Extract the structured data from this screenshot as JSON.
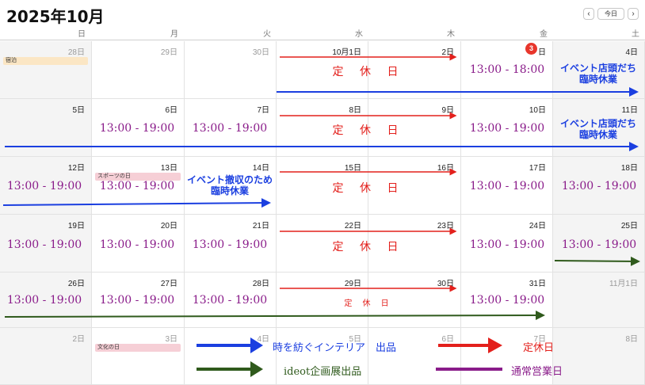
{
  "header": {
    "title": "2025年10月",
    "prev_label": "‹",
    "today_label": "今日",
    "next_label": "›"
  },
  "weekdays": [
    "日",
    "月",
    "火",
    "水",
    "木",
    "金",
    "土"
  ],
  "days": {
    "r0": [
      "28日",
      "29日",
      "30日",
      "10月1日",
      "2日",
      "3",
      "4日"
    ],
    "today_suffix": "日",
    "r1": [
      "5日",
      "6日",
      "7日",
      "8日",
      "9日",
      "10日",
      "11日"
    ],
    "r2": [
      "12日",
      "13日",
      "14日",
      "15日",
      "16日",
      "17日",
      "18日"
    ],
    "r3": [
      "19日",
      "20日",
      "21日",
      "22日",
      "23日",
      "24日",
      "25日"
    ],
    "r4": [
      "26日",
      "27日",
      "28日",
      "29日",
      "30日",
      "31日",
      "11月1日"
    ],
    "r5": [
      "2日",
      "3日",
      "4日",
      "5日",
      "6日",
      "7日",
      "8日"
    ]
  },
  "events": {
    "stay": "宿泊",
    "sports_day": "スポーツの日",
    "culture_day": "文化の日"
  },
  "annotations": {
    "hours_r0": "13:00 - 18:00",
    "hours": "13:00 - 19:00",
    "closed": "定 休 日",
    "store_closed_line1": "イベント店頭だち",
    "store_closed_line2": "臨時休業",
    "removal_line1": "イベント撤収のため",
    "removal_line2": "臨時休業"
  },
  "legend": {
    "blue": "時を紡ぐインテリア　出品",
    "red": "定休日",
    "green": "ideot企画展出品",
    "purple": "通常営業日"
  },
  "colors": {
    "blue": "#1b3fe0",
    "red": "#e3201c",
    "green": "#2f5a1c",
    "purple": "#8a1c8a",
    "today_badge": "#e8362c"
  }
}
